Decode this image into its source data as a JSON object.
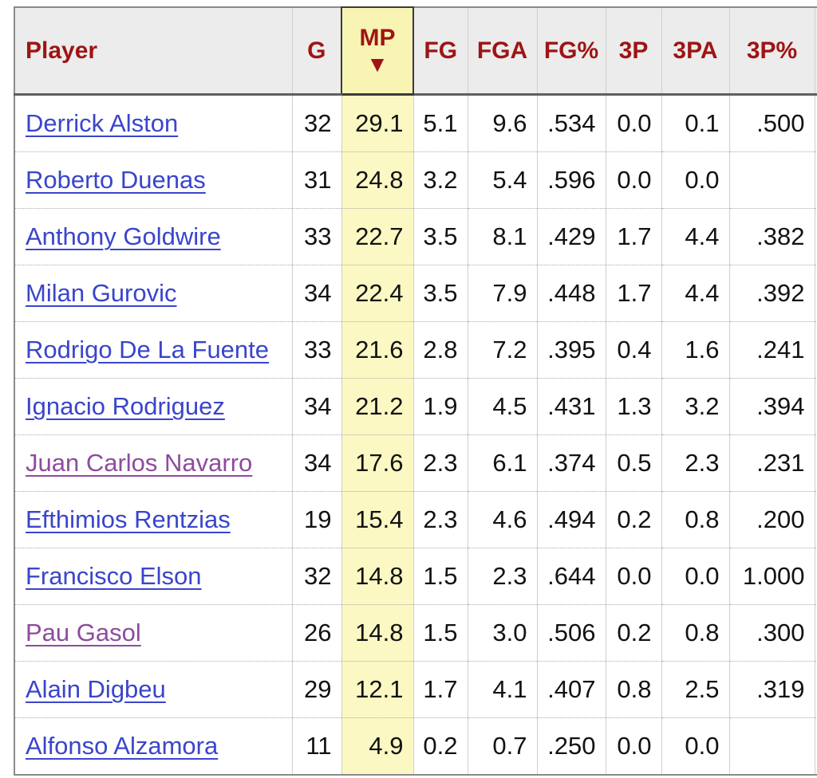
{
  "colors": {
    "header_text": "#9e1414",
    "header_bg": "#ececec",
    "sorted_header_bg": "#f8f4b4",
    "sorted_cell_bg": "#fbf8c3",
    "link": "#3a45cb",
    "visited_link": "#8e4b9e",
    "body_text": "#121212",
    "outer_border": "#8a8a8a"
  },
  "table": {
    "sort_indicator": "▼",
    "sorted_column": "MP",
    "sort_direction": "descending",
    "columns": [
      {
        "key": "player",
        "label": "Player",
        "sorted": false
      },
      {
        "key": "g",
        "label": "G",
        "sorted": false
      },
      {
        "key": "mp",
        "label": "MP",
        "sorted": true
      },
      {
        "key": "fg",
        "label": "FG",
        "sorted": false
      },
      {
        "key": "fga",
        "label": "FGA",
        "sorted": false
      },
      {
        "key": "fg_pct",
        "label": "FG%",
        "sorted": false
      },
      {
        "key": "p3",
        "label": "3P",
        "sorted": false
      },
      {
        "key": "p3a",
        "label": "3PA",
        "sorted": false
      },
      {
        "key": "p3_pct",
        "label": "3P%",
        "sorted": false
      }
    ],
    "rows": [
      {
        "player": "Derrick Alston",
        "visited": false,
        "g": "32",
        "mp": "29.1",
        "fg": "5.1",
        "fga": "9.6",
        "fg_pct": ".534",
        "p3": "0.0",
        "p3a": "0.1",
        "p3_pct": ".500"
      },
      {
        "player": "Roberto Duenas",
        "visited": false,
        "g": "31",
        "mp": "24.8",
        "fg": "3.2",
        "fga": "5.4",
        "fg_pct": ".596",
        "p3": "0.0",
        "p3a": "0.0",
        "p3_pct": ""
      },
      {
        "player": "Anthony Goldwire",
        "visited": false,
        "g": "33",
        "mp": "22.7",
        "fg": "3.5",
        "fga": "8.1",
        "fg_pct": ".429",
        "p3": "1.7",
        "p3a": "4.4",
        "p3_pct": ".382"
      },
      {
        "player": "Milan Gurovic",
        "visited": false,
        "g": "34",
        "mp": "22.4",
        "fg": "3.5",
        "fga": "7.9",
        "fg_pct": ".448",
        "p3": "1.7",
        "p3a": "4.4",
        "p3_pct": ".392"
      },
      {
        "player": "Rodrigo De La Fuente",
        "visited": false,
        "g": "33",
        "mp": "21.6",
        "fg": "2.8",
        "fga": "7.2",
        "fg_pct": ".395",
        "p3": "0.4",
        "p3a": "1.6",
        "p3_pct": ".241"
      },
      {
        "player": "Ignacio Rodriguez",
        "visited": false,
        "g": "34",
        "mp": "21.2",
        "fg": "1.9",
        "fga": "4.5",
        "fg_pct": ".431",
        "p3": "1.3",
        "p3a": "3.2",
        "p3_pct": ".394"
      },
      {
        "player": "Juan Carlos Navarro",
        "visited": true,
        "g": "34",
        "mp": "17.6",
        "fg": "2.3",
        "fga": "6.1",
        "fg_pct": ".374",
        "p3": "0.5",
        "p3a": "2.3",
        "p3_pct": ".231"
      },
      {
        "player": "Efthimios Rentzias",
        "visited": false,
        "g": "19",
        "mp": "15.4",
        "fg": "2.3",
        "fga": "4.6",
        "fg_pct": ".494",
        "p3": "0.2",
        "p3a": "0.8",
        "p3_pct": ".200"
      },
      {
        "player": "Francisco Elson",
        "visited": false,
        "g": "32",
        "mp": "14.8",
        "fg": "1.5",
        "fga": "2.3",
        "fg_pct": ".644",
        "p3": "0.0",
        "p3a": "0.0",
        "p3_pct": "1.000"
      },
      {
        "player": "Pau Gasol",
        "visited": true,
        "g": "26",
        "mp": "14.8",
        "fg": "1.5",
        "fga": "3.0",
        "fg_pct": ".506",
        "p3": "0.2",
        "p3a": "0.8",
        "p3_pct": ".300"
      },
      {
        "player": "Alain Digbeu",
        "visited": false,
        "g": "29",
        "mp": "12.1",
        "fg": "1.7",
        "fga": "4.1",
        "fg_pct": ".407",
        "p3": "0.8",
        "p3a": "2.5",
        "p3_pct": ".319"
      },
      {
        "player": "Alfonso Alzamora",
        "visited": false,
        "g": "11",
        "mp": "4.9",
        "fg": "0.2",
        "fga": "0.7",
        "fg_pct": ".250",
        "p3": "0.0",
        "p3a": "0.0",
        "p3_pct": ""
      }
    ]
  }
}
